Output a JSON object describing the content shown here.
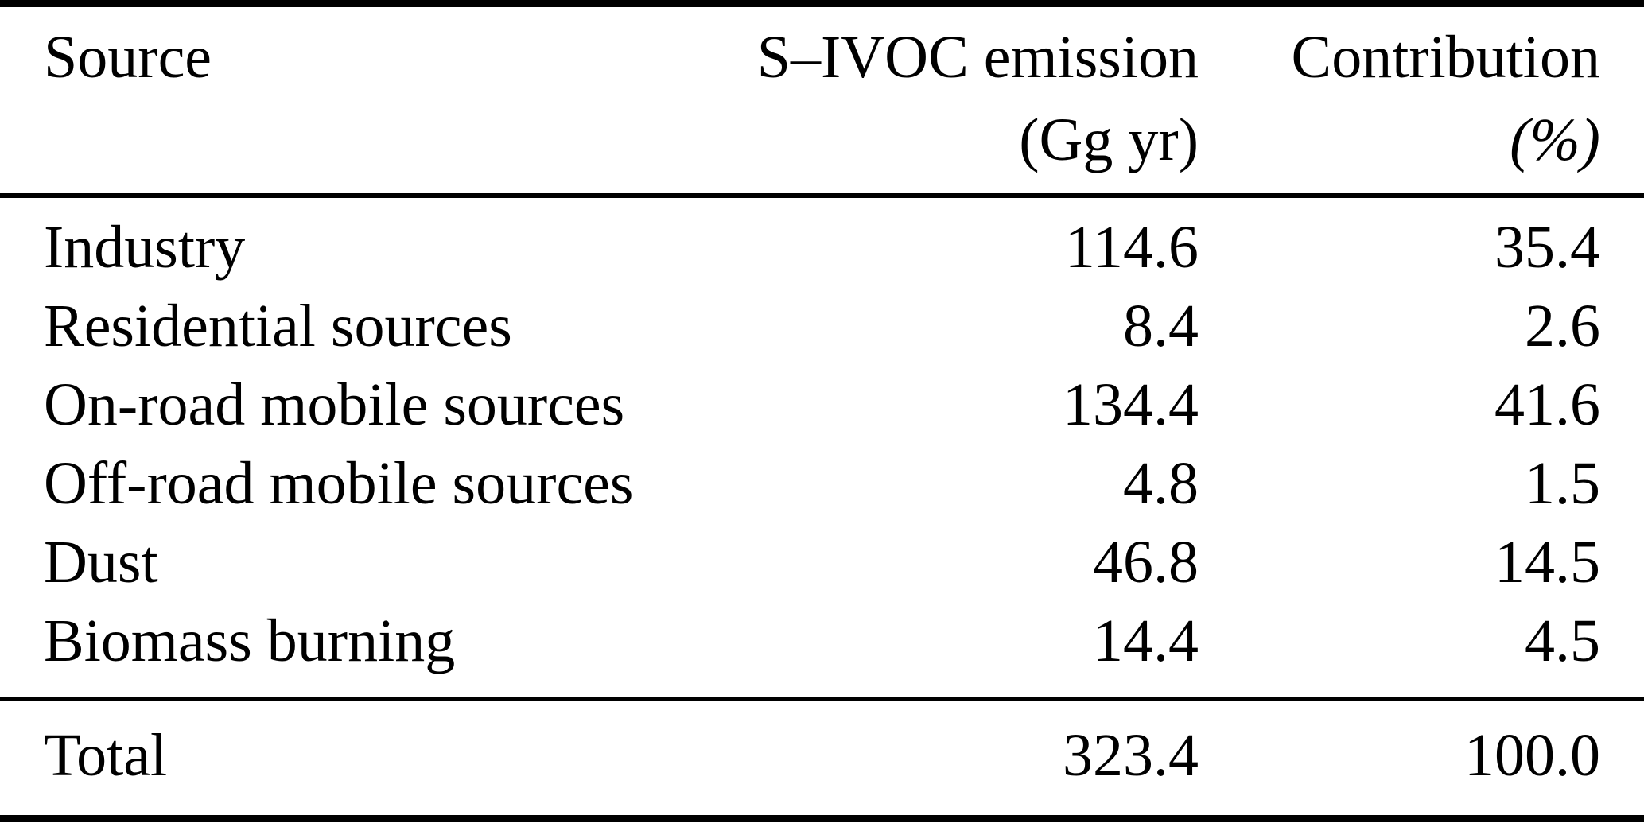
{
  "table": {
    "columns": [
      {
        "label": "Source"
      },
      {
        "label_line1": "S–IVOC emission",
        "label_line2": "(Gg yr)"
      },
      {
        "label_line1": "Contribution",
        "label_line2": "(%)"
      }
    ],
    "rows": [
      {
        "source": "Industry",
        "emission": "114.6",
        "contribution": "35.4"
      },
      {
        "source": "Residential sources",
        "emission": "8.4",
        "contribution": "2.6"
      },
      {
        "source": "On-road mobile sources",
        "emission": "134.4",
        "contribution": "41.6"
      },
      {
        "source": "Off-road mobile sources",
        "emission": "4.8",
        "contribution": "1.5"
      },
      {
        "source": "Dust",
        "emission": "46.8",
        "contribution": "14.5"
      },
      {
        "source": "Biomass burning",
        "emission": "14.4",
        "contribution": "4.5"
      }
    ],
    "total_row": {
      "source": "Total",
      "emission": "323.4",
      "contribution": "100.0"
    },
    "colors": {
      "text": "#000000",
      "background": "#ffffff",
      "rule": "#000000"
    }
  },
  "chart_data": {
    "type": "table",
    "title": "",
    "columns": [
      "Source",
      "S–IVOC emission (Gg yr)",
      "Contribution (%)"
    ],
    "categories": [
      "Industry",
      "Residential sources",
      "On-road mobile sources",
      "Off-road mobile sources",
      "Dust",
      "Biomass burning"
    ],
    "series": [
      {
        "name": "S–IVOC emission (Gg yr)",
        "values": [
          114.6,
          8.4,
          134.4,
          4.8,
          46.8,
          14.4
        ]
      },
      {
        "name": "Contribution (%)",
        "values": [
          35.4,
          2.6,
          41.6,
          1.5,
          14.5,
          4.5
        ]
      }
    ],
    "totals": {
      "S–IVOC emission (Gg yr)": 323.4,
      "Contribution (%)": 100.0
    }
  }
}
